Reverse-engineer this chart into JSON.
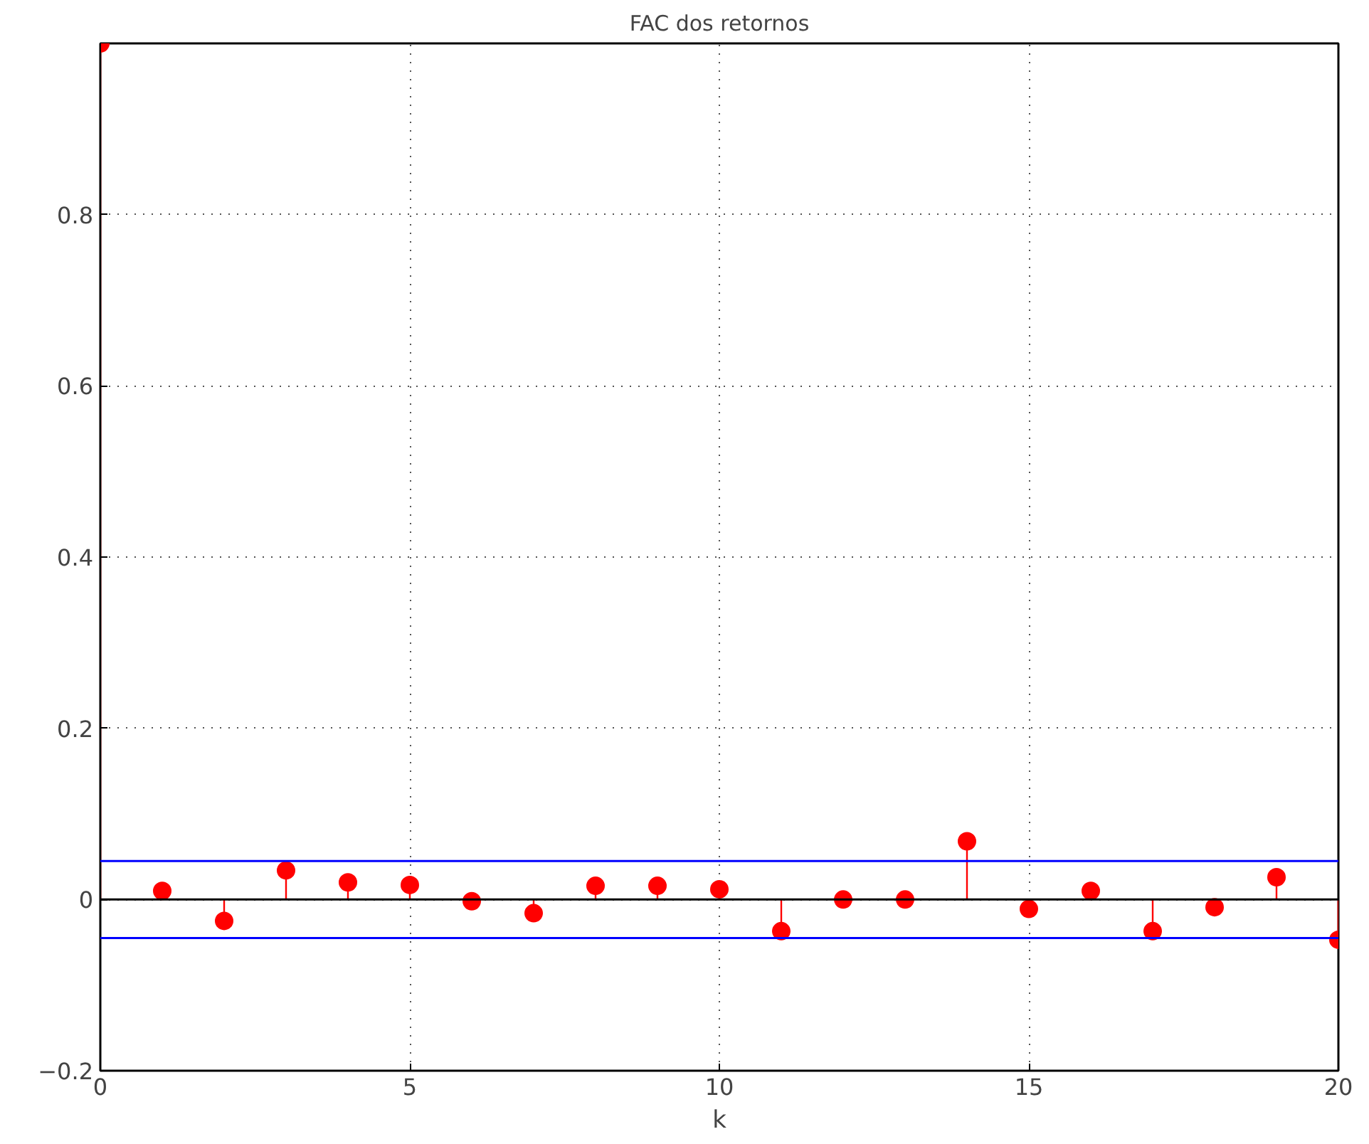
{
  "chart_data": {
    "type": "lollipop",
    "title": "FAC dos retornos",
    "xlabel": "k",
    "x": [
      0,
      1,
      2,
      3,
      4,
      5,
      6,
      7,
      8,
      9,
      10,
      11,
      12,
      13,
      14,
      15,
      16,
      17,
      18,
      19,
      20
    ],
    "values": [
      1.0,
      0.01,
      -0.025,
      0.034,
      0.02,
      0.017,
      -0.002,
      -0.016,
      0.016,
      0.016,
      0.012,
      -0.037,
      0.0,
      0.0,
      0.068,
      -0.011,
      0.01,
      -0.037,
      -0.009,
      0.026,
      -0.047
    ],
    "color": "#ff0000",
    "marker": "circle",
    "xlim": [
      0,
      20
    ],
    "xticks": [
      0,
      5,
      10,
      15,
      20
    ],
    "ylim": [
      -0.2,
      1.0
    ],
    "yticks": [
      -0.2,
      0,
      0.2,
      0.4,
      0.6,
      0.8
    ],
    "grid": true,
    "ref_lines": [
      {
        "axis": "y",
        "value": 0.045,
        "color": "#0000ff"
      },
      {
        "axis": "y",
        "value": -0.045,
        "color": "#0000ff"
      },
      {
        "axis": "y",
        "value": 0,
        "color": "#000000"
      }
    ]
  }
}
